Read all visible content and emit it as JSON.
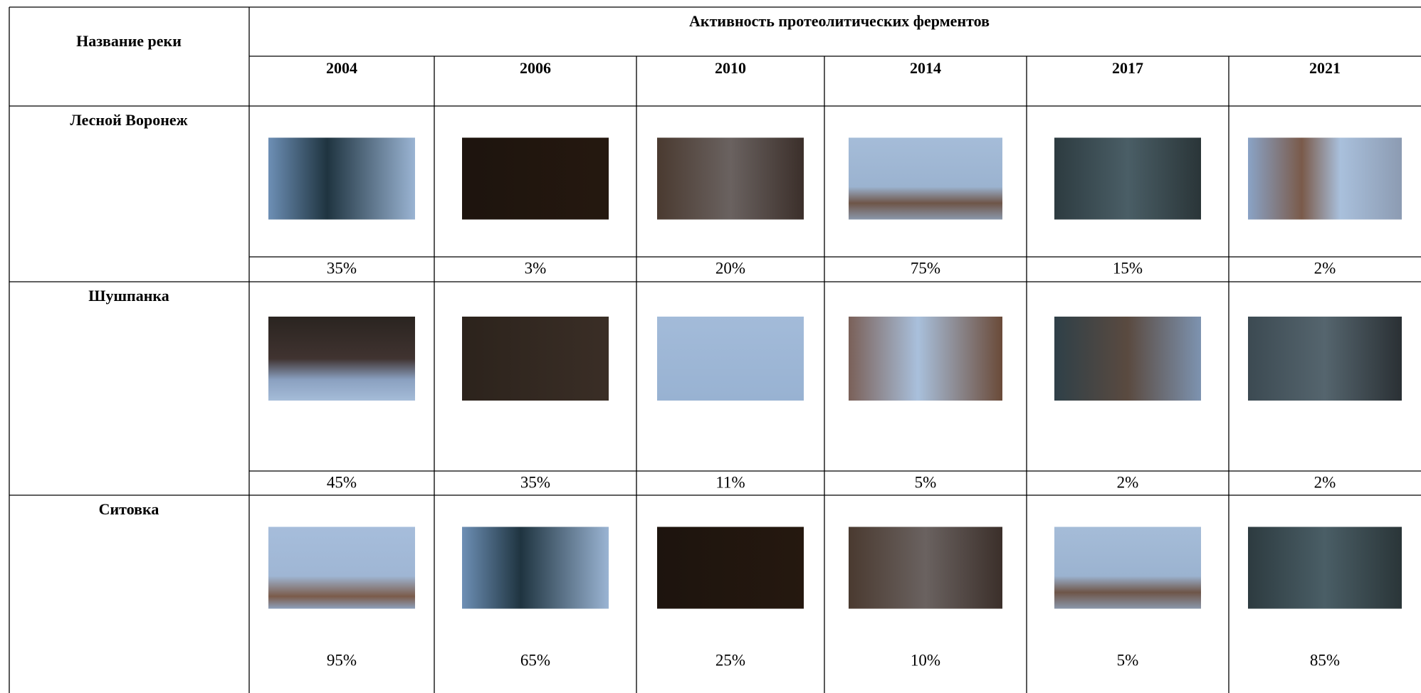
{
  "header": {
    "river_column": "Название реки",
    "title": "Активность протеолитических ферментов",
    "years": [
      "2004",
      "2006",
      "2010",
      "2014",
      "2017",
      "2021"
    ]
  },
  "rows": [
    {
      "name": "Лесной Воронеж",
      "values": [
        "35%",
        "3%",
        "20%",
        "75%",
        "15%",
        "2%"
      ]
    },
    {
      "name": "Шушпанка",
      "values": [
        "45%",
        "35%",
        "11%",
        "5%",
        "2%",
        "2%"
      ]
    },
    {
      "name": "Ситовка",
      "values": [
        "95%",
        "65%",
        "25%",
        "10%",
        "5%",
        "85%"
      ]
    }
  ]
}
